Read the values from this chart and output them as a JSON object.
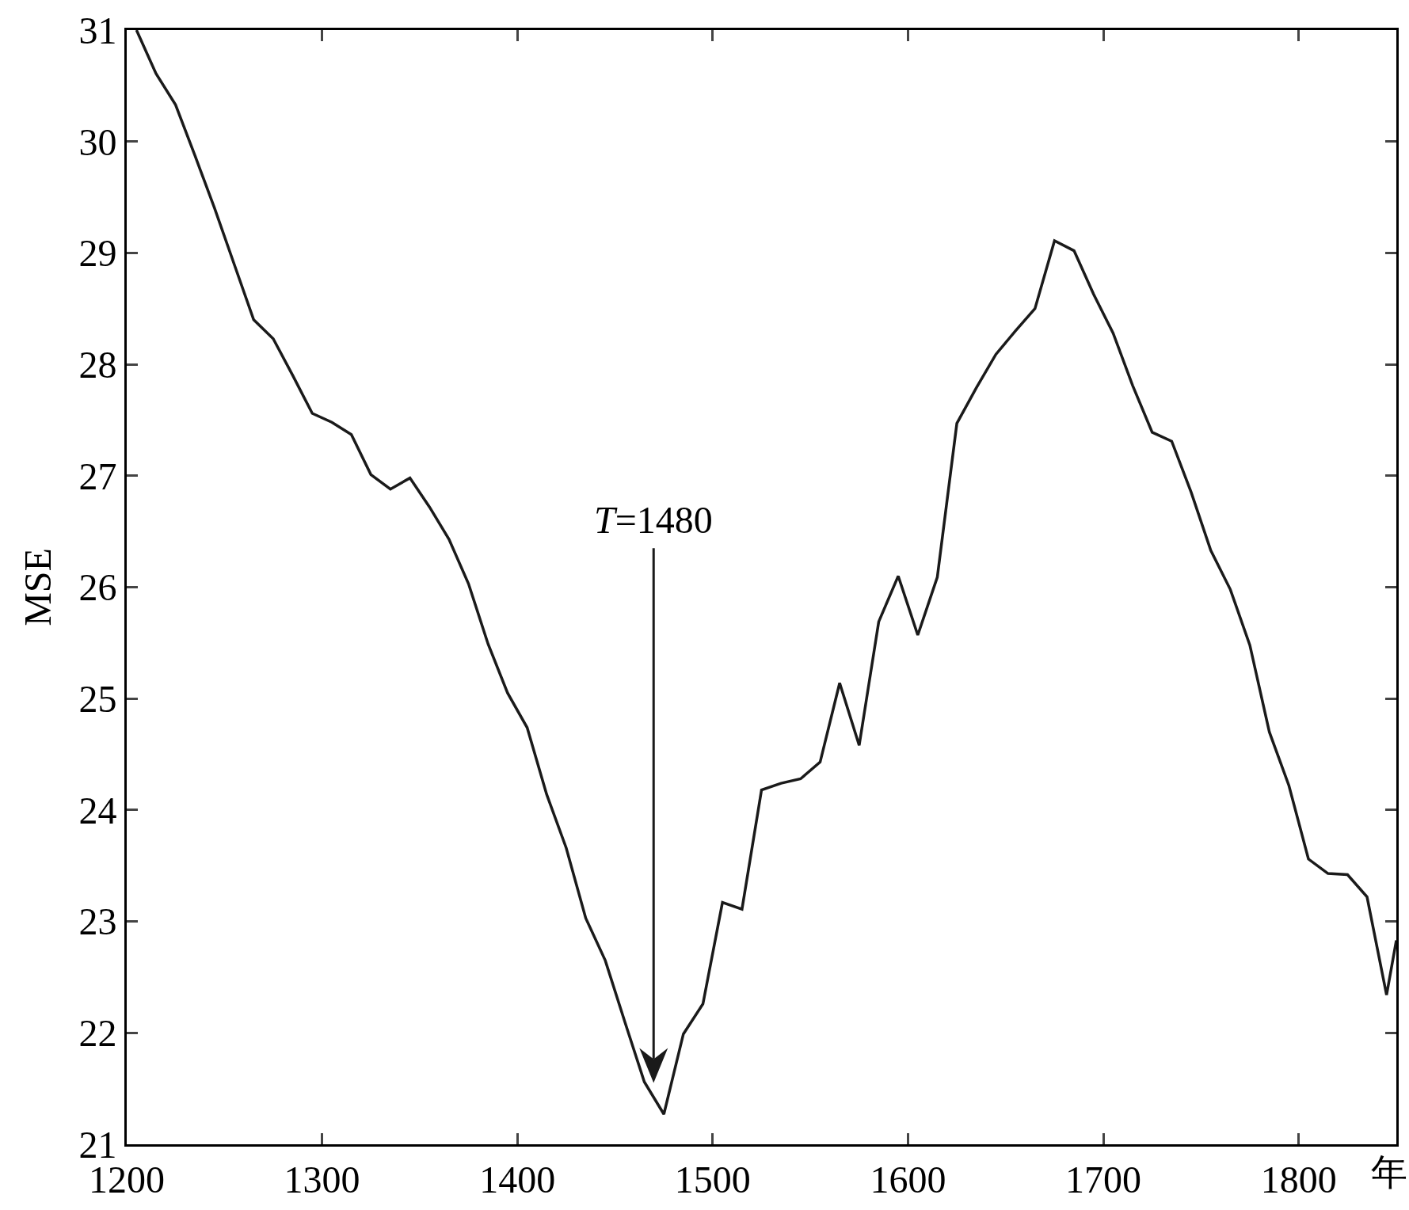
{
  "chart_data": {
    "type": "line",
    "xlabel": "年",
    "ylabel": "MSE",
    "x": [
      1205,
      1215,
      1225,
      1235,
      1245,
      1255,
      1265,
      1275,
      1285,
      1295,
      1305,
      1315,
      1325,
      1335,
      1345,
      1355,
      1365,
      1375,
      1385,
      1395,
      1405,
      1415,
      1425,
      1435,
      1445,
      1455,
      1465,
      1475,
      1485,
      1495,
      1505,
      1515,
      1525,
      1535,
      1545,
      1555,
      1565,
      1575,
      1585,
      1595,
      1605,
      1615,
      1625,
      1635,
      1645,
      1655,
      1665,
      1675,
      1685,
      1695,
      1705,
      1715,
      1725,
      1735,
      1745,
      1755,
      1765,
      1775,
      1785,
      1795,
      1805,
      1815,
      1825,
      1835,
      1845,
      1850
    ],
    "series": [
      {
        "color": "#1a1a1a",
        "values": [
          31.0,
          30.61,
          30.33,
          29.87,
          29.4,
          28.9,
          28.4,
          28.23,
          27.9,
          27.56,
          27.48,
          27.37,
          27.01,
          26.88,
          26.98,
          26.72,
          26.43,
          26.03,
          25.49,
          25.05,
          24.74,
          24.14,
          23.66,
          23.03,
          22.65,
          22.1,
          21.56,
          21.27,
          21.99,
          22.26,
          23.17,
          23.11,
          24.18,
          24.24,
          24.28,
          24.43,
          25.14,
          24.58,
          25.69,
          26.1,
          25.57,
          26.09,
          27.47,
          27.79,
          28.09,
          28.3,
          28.5,
          29.11,
          29.02,
          28.63,
          28.28,
          27.81,
          27.39,
          27.31,
          26.85,
          26.33,
          25.98,
          25.48,
          24.7,
          24.22,
          23.56,
          23.43,
          23.42,
          23.22,
          22.34,
          22.83
        ]
      }
    ],
    "annotations": [
      "T=1480"
    ],
    "xlim": [
      1200,
      1850
    ],
    "xticks": [
      1200,
      1300,
      1400,
      1500,
      1600,
      1700,
      1800
    ],
    "ylim": [
      21,
      31
    ],
    "yticks": [
      21,
      22,
      23,
      24,
      25,
      26,
      27,
      28,
      29,
      30,
      31
    ],
    "grid": false,
    "marker": "none",
    "line_style": "solid"
  }
}
